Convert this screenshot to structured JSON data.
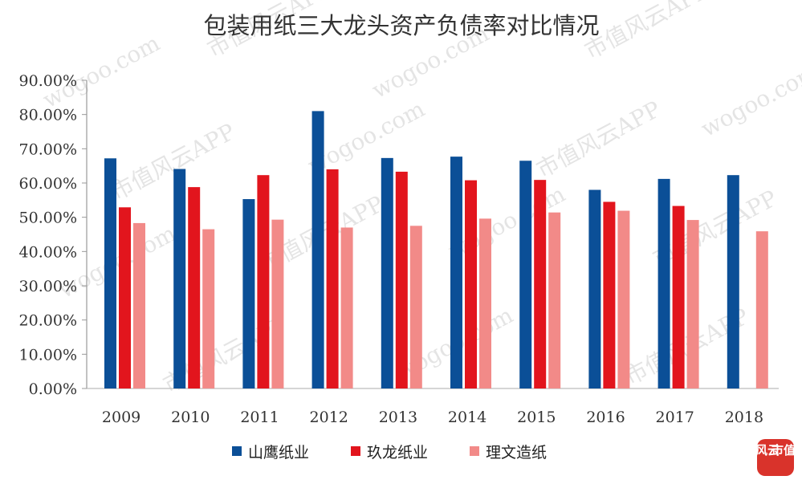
{
  "chart_data": {
    "type": "bar",
    "title": "包装用纸三大龙头资产负债率对比情况",
    "categories": [
      "2009",
      "2010",
      "2011",
      "2012",
      "2013",
      "2014",
      "2015",
      "2016",
      "2017",
      "2018"
    ],
    "series": [
      {
        "name": "山鹰纸业",
        "color": "#0B4F97",
        "values": [
          67.2,
          64.1,
          55.3,
          81.0,
          67.3,
          67.7,
          66.5,
          58.0,
          61.2,
          62.3
        ]
      },
      {
        "name": "玖龙纸业",
        "color": "#E2151D",
        "values": [
          52.9,
          58.8,
          62.3,
          64.0,
          63.3,
          60.8,
          60.9,
          54.5,
          53.3,
          null
        ]
      },
      {
        "name": "理文造纸",
        "color": "#F28A88",
        "values": [
          48.3,
          46.5,
          49.3,
          47.0,
          47.5,
          49.6,
          51.4,
          51.9,
          49.2,
          45.9
        ]
      }
    ],
    "y_ticks": [
      "0.00%",
      "10.00%",
      "20.00%",
      "30.00%",
      "40.00%",
      "50.00%",
      "60.00%",
      "70.00%",
      "80.00%",
      "90.00%"
    ],
    "ylim": [
      0,
      90
    ],
    "xlabel": "",
    "ylabel": "",
    "grid": false,
    "legend_position": "bottom-center"
  },
  "watermark": {
    "text_a": "wogoo.com",
    "text_b": "市值风云APP"
  },
  "logo": {
    "text_left": "风云",
    "text_right": "市值",
    "color": "#D9332B"
  }
}
